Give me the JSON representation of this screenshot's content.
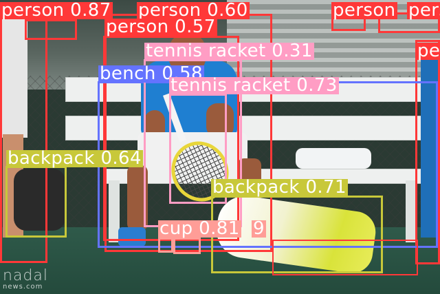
{
  "image": {
    "watermark_line1": "nadal",
    "watermark_line2": "news.com"
  },
  "colors": {
    "person": "#ff3838",
    "tennis_racket": "#ff9dc4",
    "bench": "#6473ff",
    "backpack": "#c8c83a",
    "cup": "#ff9d97"
  },
  "detections": [
    {
      "id": "person-1",
      "label": "person 0.87",
      "class": "person",
      "confidence": 0.87
    },
    {
      "id": "person-2",
      "label": "person 0.60",
      "class": "person",
      "confidence": 0.6
    },
    {
      "id": "person-3",
      "label": "person 0.57",
      "class": "person",
      "confidence": 0.57
    },
    {
      "id": "person-4",
      "label": "person",
      "class": "person"
    },
    {
      "id": "person-5",
      "label": "person",
      "class": "person"
    },
    {
      "id": "person-6",
      "label": "pe",
      "class": "person"
    },
    {
      "id": "tennis-racket-1",
      "label": "tennis racket 0.31",
      "class": "tennis racket",
      "confidence": 0.31
    },
    {
      "id": "bench-1",
      "label": "bench 0.58",
      "class": "bench",
      "confidence": 0.58
    },
    {
      "id": "tennis-racket-2",
      "label": "tennis racket 0.73",
      "class": "tennis racket",
      "confidence": 0.73
    },
    {
      "id": "backpack-1",
      "label": "backpack 0.64",
      "class": "backpack",
      "confidence": 0.64
    },
    {
      "id": "backpack-2",
      "label": "backpack 0.71",
      "class": "backpack",
      "confidence": 0.71
    },
    {
      "id": "cup-1",
      "label": "cup 0.81",
      "class": "cup",
      "confidence": 0.81
    },
    {
      "id": "cup-2",
      "label": "9",
      "class": "cup"
    }
  ]
}
